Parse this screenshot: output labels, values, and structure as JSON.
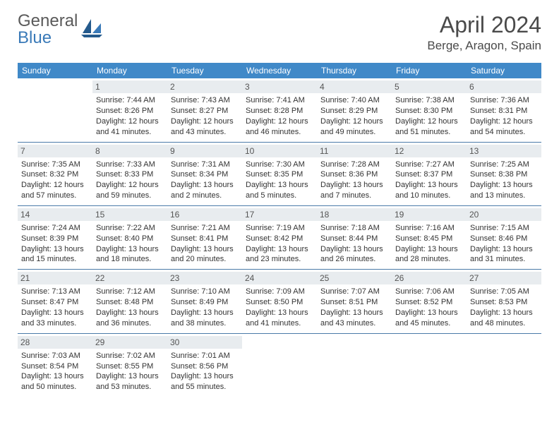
{
  "logo": {
    "text1": "General",
    "text2": "Blue"
  },
  "title": "April 2024",
  "location": "Berge, Aragon, Spain",
  "colors": {
    "header_bg": "#4089c8",
    "daynum_bg": "#e8ecef",
    "row_border": "#4a7aa8",
    "logo_gray": "#5a5a5a",
    "logo_blue": "#3a7ab8"
  },
  "weekdays": [
    "Sunday",
    "Monday",
    "Tuesday",
    "Wednesday",
    "Thursday",
    "Friday",
    "Saturday"
  ],
  "weeks": [
    [
      {
        "day": "",
        "lines": [
          "",
          "",
          "",
          ""
        ]
      },
      {
        "day": "1",
        "lines": [
          "Sunrise: 7:44 AM",
          "Sunset: 8:26 PM",
          "Daylight: 12 hours",
          "and 41 minutes."
        ]
      },
      {
        "day": "2",
        "lines": [
          "Sunrise: 7:43 AM",
          "Sunset: 8:27 PM",
          "Daylight: 12 hours",
          "and 43 minutes."
        ]
      },
      {
        "day": "3",
        "lines": [
          "Sunrise: 7:41 AM",
          "Sunset: 8:28 PM",
          "Daylight: 12 hours",
          "and 46 minutes."
        ]
      },
      {
        "day": "4",
        "lines": [
          "Sunrise: 7:40 AM",
          "Sunset: 8:29 PM",
          "Daylight: 12 hours",
          "and 49 minutes."
        ]
      },
      {
        "day": "5",
        "lines": [
          "Sunrise: 7:38 AM",
          "Sunset: 8:30 PM",
          "Daylight: 12 hours",
          "and 51 minutes."
        ]
      },
      {
        "day": "6",
        "lines": [
          "Sunrise: 7:36 AM",
          "Sunset: 8:31 PM",
          "Daylight: 12 hours",
          "and 54 minutes."
        ]
      }
    ],
    [
      {
        "day": "7",
        "lines": [
          "Sunrise: 7:35 AM",
          "Sunset: 8:32 PM",
          "Daylight: 12 hours",
          "and 57 minutes."
        ]
      },
      {
        "day": "8",
        "lines": [
          "Sunrise: 7:33 AM",
          "Sunset: 8:33 PM",
          "Daylight: 12 hours",
          "and 59 minutes."
        ]
      },
      {
        "day": "9",
        "lines": [
          "Sunrise: 7:31 AM",
          "Sunset: 8:34 PM",
          "Daylight: 13 hours",
          "and 2 minutes."
        ]
      },
      {
        "day": "10",
        "lines": [
          "Sunrise: 7:30 AM",
          "Sunset: 8:35 PM",
          "Daylight: 13 hours",
          "and 5 minutes."
        ]
      },
      {
        "day": "11",
        "lines": [
          "Sunrise: 7:28 AM",
          "Sunset: 8:36 PM",
          "Daylight: 13 hours",
          "and 7 minutes."
        ]
      },
      {
        "day": "12",
        "lines": [
          "Sunrise: 7:27 AM",
          "Sunset: 8:37 PM",
          "Daylight: 13 hours",
          "and 10 minutes."
        ]
      },
      {
        "day": "13",
        "lines": [
          "Sunrise: 7:25 AM",
          "Sunset: 8:38 PM",
          "Daylight: 13 hours",
          "and 13 minutes."
        ]
      }
    ],
    [
      {
        "day": "14",
        "lines": [
          "Sunrise: 7:24 AM",
          "Sunset: 8:39 PM",
          "Daylight: 13 hours",
          "and 15 minutes."
        ]
      },
      {
        "day": "15",
        "lines": [
          "Sunrise: 7:22 AM",
          "Sunset: 8:40 PM",
          "Daylight: 13 hours",
          "and 18 minutes."
        ]
      },
      {
        "day": "16",
        "lines": [
          "Sunrise: 7:21 AM",
          "Sunset: 8:41 PM",
          "Daylight: 13 hours",
          "and 20 minutes."
        ]
      },
      {
        "day": "17",
        "lines": [
          "Sunrise: 7:19 AM",
          "Sunset: 8:42 PM",
          "Daylight: 13 hours",
          "and 23 minutes."
        ]
      },
      {
        "day": "18",
        "lines": [
          "Sunrise: 7:18 AM",
          "Sunset: 8:44 PM",
          "Daylight: 13 hours",
          "and 26 minutes."
        ]
      },
      {
        "day": "19",
        "lines": [
          "Sunrise: 7:16 AM",
          "Sunset: 8:45 PM",
          "Daylight: 13 hours",
          "and 28 minutes."
        ]
      },
      {
        "day": "20",
        "lines": [
          "Sunrise: 7:15 AM",
          "Sunset: 8:46 PM",
          "Daylight: 13 hours",
          "and 31 minutes."
        ]
      }
    ],
    [
      {
        "day": "21",
        "lines": [
          "Sunrise: 7:13 AM",
          "Sunset: 8:47 PM",
          "Daylight: 13 hours",
          "and 33 minutes."
        ]
      },
      {
        "day": "22",
        "lines": [
          "Sunrise: 7:12 AM",
          "Sunset: 8:48 PM",
          "Daylight: 13 hours",
          "and 36 minutes."
        ]
      },
      {
        "day": "23",
        "lines": [
          "Sunrise: 7:10 AM",
          "Sunset: 8:49 PM",
          "Daylight: 13 hours",
          "and 38 minutes."
        ]
      },
      {
        "day": "24",
        "lines": [
          "Sunrise: 7:09 AM",
          "Sunset: 8:50 PM",
          "Daylight: 13 hours",
          "and 41 minutes."
        ]
      },
      {
        "day": "25",
        "lines": [
          "Sunrise: 7:07 AM",
          "Sunset: 8:51 PM",
          "Daylight: 13 hours",
          "and 43 minutes."
        ]
      },
      {
        "day": "26",
        "lines": [
          "Sunrise: 7:06 AM",
          "Sunset: 8:52 PM",
          "Daylight: 13 hours",
          "and 45 minutes."
        ]
      },
      {
        "day": "27",
        "lines": [
          "Sunrise: 7:05 AM",
          "Sunset: 8:53 PM",
          "Daylight: 13 hours",
          "and 48 minutes."
        ]
      }
    ],
    [
      {
        "day": "28",
        "lines": [
          "Sunrise: 7:03 AM",
          "Sunset: 8:54 PM",
          "Daylight: 13 hours",
          "and 50 minutes."
        ]
      },
      {
        "day": "29",
        "lines": [
          "Sunrise: 7:02 AM",
          "Sunset: 8:55 PM",
          "Daylight: 13 hours",
          "and 53 minutes."
        ]
      },
      {
        "day": "30",
        "lines": [
          "Sunrise: 7:01 AM",
          "Sunset: 8:56 PM",
          "Daylight: 13 hours",
          "and 55 minutes."
        ]
      },
      {
        "day": "",
        "lines": [
          "",
          "",
          "",
          ""
        ]
      },
      {
        "day": "",
        "lines": [
          "",
          "",
          "",
          ""
        ]
      },
      {
        "day": "",
        "lines": [
          "",
          "",
          "",
          ""
        ]
      },
      {
        "day": "",
        "lines": [
          "",
          "",
          "",
          ""
        ]
      }
    ]
  ]
}
